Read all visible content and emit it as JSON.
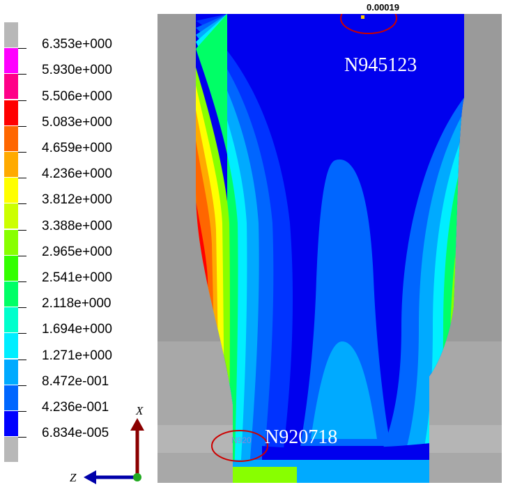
{
  "legend": {
    "labels": [
      "6.353e+000",
      "5.930e+000",
      "5.506e+000",
      "5.083e+000",
      "4.659e+000",
      "4.236e+000",
      "3.812e+000",
      "3.388e+000",
      "2.965e+000",
      "2.541e+000",
      "2.118e+000",
      "1.694e+000",
      "1.271e+000",
      "8.472e-001",
      "4.236e-001",
      "6.834e-005"
    ],
    "colors": [
      "#b8b8b8",
      "#ff00ff",
      "#ff0088",
      "#ff0000",
      "#ff6600",
      "#ffaa00",
      "#ffff00",
      "#ccff00",
      "#88ff00",
      "#33ff00",
      "#00ff66",
      "#00ffcc",
      "#00eeff",
      "#00aaff",
      "#0066ff",
      "#0000ff",
      "#b8b8b8"
    ]
  },
  "annotations": {
    "top_node": "N945123",
    "bottom_node": "N920718",
    "top_value": "0.00019",
    "small_bottom": "N920"
  },
  "axes": {
    "x": "X",
    "z": "Z"
  }
}
